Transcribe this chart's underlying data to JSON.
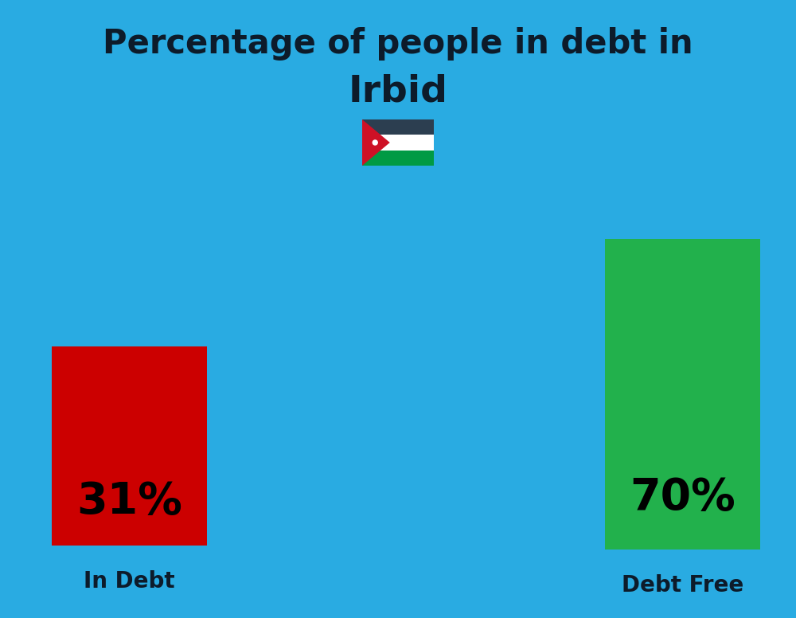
{
  "title_line1": "Percentage of people in debt in",
  "title_line2": "Irbid",
  "background_color": "#29ABE2",
  "bar1_label": "31%",
  "bar1_color": "#CC0000",
  "bar1_text": "In Debt",
  "bar2_label": "70%",
  "bar2_color": "#22B14C",
  "bar2_text": "Debt Free",
  "title_color": "#0d1b2a",
  "label_color": "#0d1b2a",
  "title_fontsize": 30,
  "subtitle_fontsize": 34,
  "bar_label_fontsize": 40,
  "axis_label_fontsize": 20,
  "fig_width": 10.0,
  "fig_height": 7.76
}
